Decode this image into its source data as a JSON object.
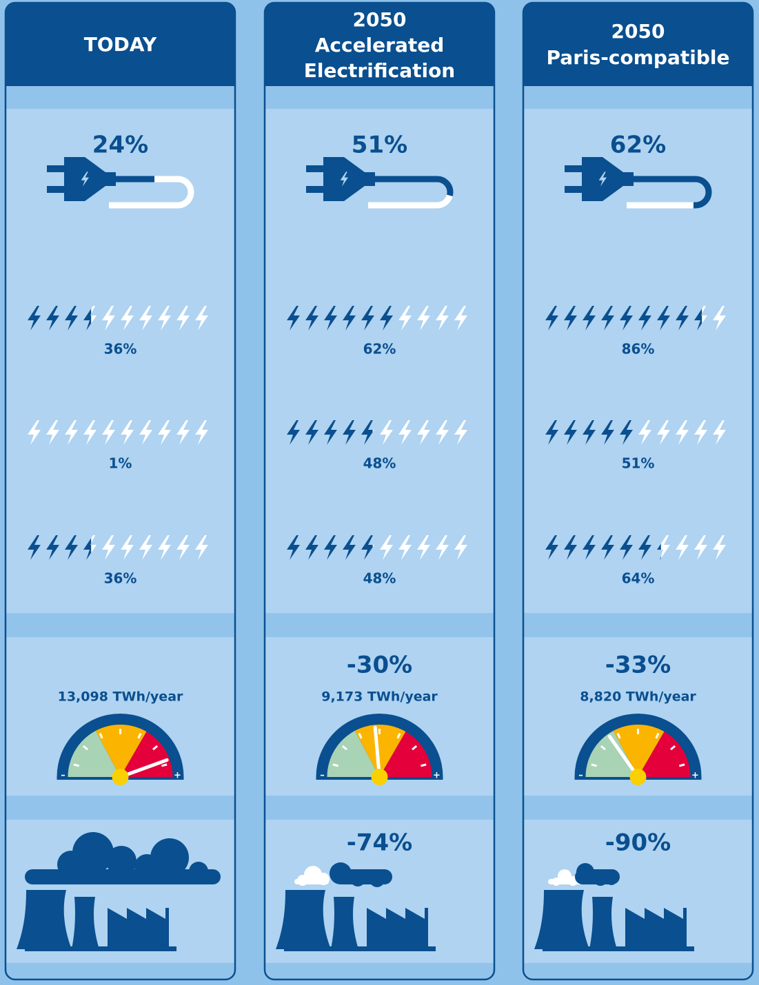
{
  "columns": [
    {
      "header": [
        "TODAY"
      ],
      "plug": {
        "value": 24,
        "label": "24%"
      },
      "bolts": [
        {
          "value": 36,
          "label": "36%"
        },
        {
          "value": 1,
          "label": "1%"
        },
        {
          "value": 36,
          "label": "36%"
        }
      ],
      "demand": "13,098 TWh/year"
    },
    {
      "header": [
        "2050",
        "Accelerated",
        "Electrification"
      ],
      "plug": {
        "value": 51,
        "label": "51%"
      },
      "bolts": [
        {
          "value": 62,
          "label": "62%"
        },
        {
          "value": 48,
          "label": "48%"
        },
        {
          "value": 48,
          "label": "48%"
        }
      ],
      "demand_change": "-30%",
      "demand": "9,173 TWh/year",
      "emissions_change": "-74%"
    },
    {
      "header": [
        "2050",
        "Paris-compatible"
      ],
      "plug": {
        "value": 62,
        "label": "62%"
      },
      "bolts": [
        {
          "value": 86,
          "label": "86%"
        },
        {
          "value": 51,
          "label": "51%"
        },
        {
          "value": 64,
          "label": "64%"
        }
      ],
      "demand_change": "-33%",
      "demand": "8,820 TWh/year",
      "emissions_change": "-90%"
    }
  ],
  "gauge_labels": {
    "min": "–",
    "max": "+"
  }
}
